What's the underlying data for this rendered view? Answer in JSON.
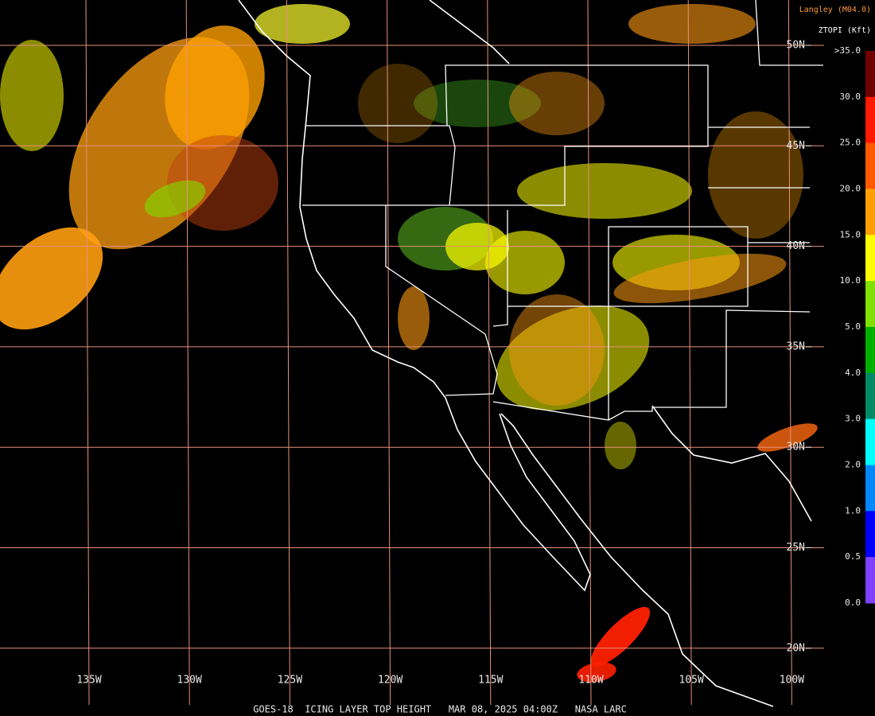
{
  "header": {
    "source": "Langley (M04.0)",
    "product": "ZTOPI (Kft)"
  },
  "footer": "GOES-18  ICING LAYER TOP HEIGHT   MAR 08, 2025 04:00Z   NASA LARC",
  "grid": {
    "longitudes": [
      "135W",
      "130W",
      "125W",
      "120W",
      "115W",
      "110W",
      "105W",
      "100W"
    ],
    "latitudes": [
      "50N",
      "45N",
      "40N",
      "35N",
      "30N",
      "25N",
      "20N"
    ]
  },
  "legend": {
    "labels": [
      ">35.0",
      "30.0",
      "25.0",
      "20.0",
      "15.0",
      "10.0",
      "5.0",
      "4.0",
      "3.0",
      "2.0",
      "1.0",
      "0.5",
      "0.0"
    ],
    "colors": [
      "#700000",
      "#ff1a00",
      "#ff5a00",
      "#ffa000",
      "#ffff00",
      "#80e000",
      "#00b000",
      "#008a66",
      "#00ffff",
      "#0088ff",
      "#0000ff",
      "#8040ff"
    ]
  }
}
